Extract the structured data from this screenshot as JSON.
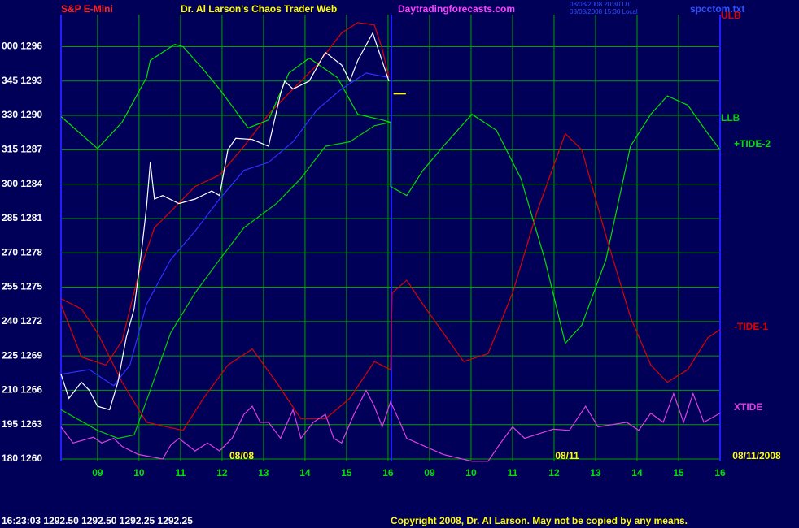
{
  "chart_data": {
    "type": "line",
    "symbol": "S&P E-Mini",
    "title": "Dr. Al Larson's Chaos Trader Web",
    "site": "Daytradingforecasts.com",
    "timestamps": [
      "08/08/2008 20:30 UT",
      "08/08/2008 15:30 Local"
    ],
    "file": "spcctom.txt",
    "status": "16:23:03  1292.50 1292.50 1292.25 1292.25",
    "copyright": "Copyright 2008, Dr. Al Larson. May not be copied by any means.",
    "date_labels": [
      "08/08",
      "08/11",
      "08/11/2008"
    ],
    "xlim": [
      -0.88,
      15
    ],
    "ylim": [
      1260,
      1298.8
    ],
    "grid": true,
    "grid_color": "#00a000",
    "axis_color": "#2020ff",
    "xticks": [
      {
        "value": 0,
        "label": "09"
      },
      {
        "value": 1,
        "label": "10"
      },
      {
        "value": 2,
        "label": "11"
      },
      {
        "value": 3,
        "label": "12"
      },
      {
        "value": 4,
        "label": "13"
      },
      {
        "value": 5,
        "label": "14"
      },
      {
        "value": 6,
        "label": "15"
      },
      {
        "value": 7,
        "label": "16"
      },
      {
        "value": 8,
        "label": "09"
      },
      {
        "value": 9,
        "label": "10"
      },
      {
        "value": 10,
        "label": "11"
      },
      {
        "value": 11,
        "label": "12"
      },
      {
        "value": 12,
        "label": "13"
      },
      {
        "value": 13,
        "label": "14"
      },
      {
        "value": 14,
        "label": "15"
      },
      {
        "value": 15,
        "label": "16"
      }
    ],
    "yticks": [
      {
        "value": 1296,
        "label": "000 1296"
      },
      {
        "value": 1293,
        "label": "345 1293"
      },
      {
        "value": 1290,
        "label": "330 1290"
      },
      {
        "value": 1287,
        "label": "315 1287"
      },
      {
        "value": 1284,
        "label": "300 1284"
      },
      {
        "value": 1281,
        "label": "285 1281"
      },
      {
        "value": 1278,
        "label": "270 1278"
      },
      {
        "value": 1275,
        "label": "255 1275"
      },
      {
        "value": 1272,
        "label": "240 1272"
      },
      {
        "value": 1269,
        "label": "225 1269"
      },
      {
        "value": 1266,
        "label": "210 1266"
      },
      {
        "value": 1263,
        "label": "195 1263"
      },
      {
        "value": 1260,
        "label": "180 1260"
      }
    ],
    "series": [
      {
        "name": "ULB",
        "color": "#e00000",
        "x": [
          -0.88,
          -0.39,
          0.2,
          0.59,
          0.98,
          1.37,
          1.76,
          2.35,
          2.94,
          3.53,
          4.12,
          4.71,
          5.29,
          5.88,
          6.27,
          6.67,
          6.86,
          7.02
        ],
        "values": [
          1273.5,
          1268.9,
          1268.2,
          1270.3,
          1276.0,
          1280.2,
          1281.6,
          1283.8,
          1284.8,
          1287.3,
          1290.1,
          1292.3,
          1294.4,
          1297.2,
          1298.1,
          1297.9,
          1295.8,
          1293.3
        ]
      },
      {
        "name": "LLB",
        "color": "#00d000",
        "x": [
          -0.88,
          0,
          0.49,
          0.88,
          1.27,
          1.76,
          2.35,
          2.94,
          3.53,
          4.31,
          4.9,
          5.49,
          6.08,
          6.67,
          7.06
        ],
        "values": [
          1264.3,
          1262.5,
          1261.8,
          1262.1,
          1266.0,
          1271.0,
          1274.5,
          1277.4,
          1280.2,
          1282.3,
          1284.5,
          1287.3,
          1287.7,
          1289.1,
          1289.4
        ]
      },
      {
        "name": "+TIDE-2",
        "color": "#00e000",
        "x": [
          -0.88,
          0,
          0.59,
          1.18,
          1.27,
          1.86,
          2.06,
          2.55,
          2.94,
          3.63,
          4.12,
          4.61,
          5.1,
          5.78,
          6.27,
          6.86,
          7.06,
          7.06,
          7.45,
          7.84,
          8.33,
          9.02,
          9.61,
          10.2,
          10.78,
          11.27,
          11.67,
          12.25,
          12.84,
          13.33,
          13.73,
          14.22,
          14.71,
          15
        ],
        "values": [
          1289.9,
          1287.1,
          1289.4,
          1293.3,
          1294.8,
          1296.2,
          1296.0,
          1294.0,
          1292.3,
          1288.9,
          1289.6,
          1293.7,
          1295.0,
          1293.3,
          1290.1,
          1289.6,
          1289.4,
          1283.8,
          1283.0,
          1285.2,
          1287.3,
          1290.1,
          1288.7,
          1284.5,
          1277.4,
          1270.1,
          1271.7,
          1277.4,
          1287.3,
          1290.1,
          1291.7,
          1290.9,
          1288.4,
          1287.0
        ]
      },
      {
        "name": "-TIDE-1",
        "color": "#e00000",
        "x": [
          -0.88,
          -0.39,
          0,
          0.59,
          1.18,
          2.06,
          2.55,
          3.14,
          3.73,
          4.31,
          4.9,
          5.49,
          6.08,
          6.67,
          7.06,
          7.1,
          7.45,
          7.84,
          8.33,
          8.82,
          9.41,
          10.0,
          10.59,
          11.27,
          11.67,
          12.25,
          12.84,
          13.33,
          13.73,
          14.22,
          14.71,
          15
        ],
        "values": [
          1274.0,
          1273.1,
          1271.0,
          1266.7,
          1263.2,
          1262.5,
          1265.3,
          1268.2,
          1269.6,
          1266.7,
          1263.5,
          1263.5,
          1265.3,
          1268.5,
          1267.8,
          1274.5,
          1275.6,
          1273.5,
          1271.0,
          1268.5,
          1269.2,
          1274.5,
          1281.6,
          1288.4,
          1287.0,
          1279.5,
          1272.4,
          1268.2,
          1266.7,
          1267.8,
          1270.6,
          1271.3
        ]
      },
      {
        "name": "XTIDE",
        "color": "#e040e0",
        "x": [
          -0.88,
          -0.59,
          -0.1,
          0.1,
          0.39,
          0.59,
          0.98,
          1.57,
          1.76,
          1.96,
          2.35,
          2.65,
          2.94,
          3.24,
          3.53,
          3.73,
          3.92,
          4.12,
          4.41,
          4.71,
          4.9,
          5.2,
          5.49,
          5.69,
          5.88,
          6.18,
          6.47,
          6.67,
          6.86,
          7.06,
          7.25,
          7.45,
          8.33,
          9.02,
          9.41,
          9.71,
          10.0,
          10.29,
          10.98,
          11.37,
          11.76,
          12.06,
          12.75,
          13.04,
          13.33,
          13.63,
          13.88,
          14.12,
          14.35,
          14.61,
          15
        ],
        "values": [
          1262.8,
          1261.4,
          1261.9,
          1261.4,
          1261.8,
          1261.1,
          1260.4,
          1260.0,
          1261.2,
          1261.8,
          1260.7,
          1261.4,
          1260.7,
          1261.8,
          1263.9,
          1264.6,
          1263.2,
          1263.2,
          1261.8,
          1264.3,
          1261.8,
          1263.2,
          1263.9,
          1261.8,
          1261.4,
          1263.9,
          1266.0,
          1264.6,
          1262.8,
          1265.0,
          1263.5,
          1261.8,
          1260.4,
          1259.8,
          1259.8,
          1261.4,
          1262.8,
          1261.8,
          1262.6,
          1262.5,
          1264.6,
          1262.8,
          1263.2,
          1262.5,
          1264.0,
          1263.2,
          1265.7,
          1263.2,
          1265.7,
          1263.2,
          1264.0
        ]
      },
      {
        "color": "#3030ff",
        "x": [
          -0.88,
          -0.2,
          0.39,
          0.78,
          1.18,
          1.76,
          2.35,
          2.94,
          3.53,
          4.12,
          4.71,
          5.29,
          5.88,
          6.47,
          7.02
        ],
        "values": [
          1267.4,
          1267.8,
          1266.4,
          1268.2,
          1273.5,
          1277.4,
          1279.9,
          1282.7,
          1285.2,
          1285.9,
          1287.7,
          1290.5,
          1292.3,
          1293.7,
          1293.3
        ]
      },
      {
        "color": "#ffffff",
        "x": [
          -0.88,
          -0.69,
          -0.39,
          -0.2,
          0,
          0.29,
          0.49,
          0.69,
          0.88,
          1.08,
          1.18,
          1.27,
          1.37,
          1.57,
          1.96,
          2.35,
          2.75,
          2.94,
          3.14,
          3.33,
          3.73,
          4.12,
          4.41,
          4.51,
          4.71,
          5.1,
          5.49,
          5.88,
          6.08,
          6.27,
          6.63,
          6.76,
          7.02
        ],
        "values": [
          1267.4,
          1265.3,
          1266.7,
          1266.0,
          1264.6,
          1264.3,
          1266.7,
          1270.6,
          1273.1,
          1278.8,
          1282.0,
          1285.9,
          1282.7,
          1283.0,
          1282.3,
          1282.7,
          1283.4,
          1283.0,
          1287.0,
          1288.0,
          1287.9,
          1287.3,
          1291.9,
          1293.0,
          1292.3,
          1293.0,
          1295.5,
          1294.4,
          1293.0,
          1294.8,
          1297.2,
          1295.8,
          1293.0
        ]
      },
      {
        "color": "#ffff00",
        "x": [
          7.13,
          7.43
        ],
        "values": [
          1291.9,
          1291.9
        ]
      }
    ]
  }
}
